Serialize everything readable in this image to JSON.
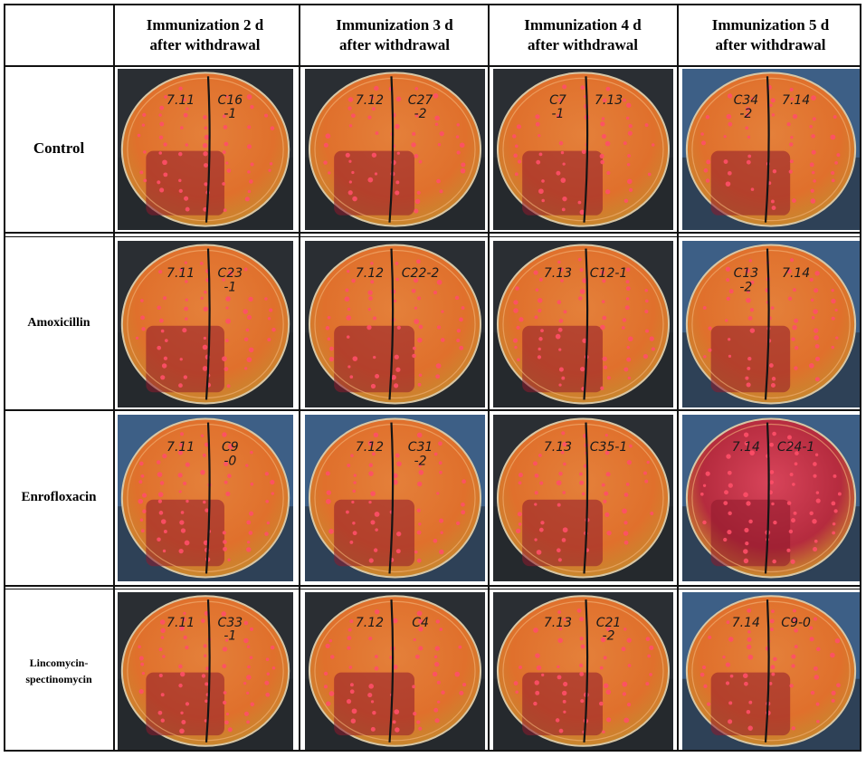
{
  "columns": [
    {
      "line1": "Immunization 2 d",
      "line2": "after withdrawal"
    },
    {
      "line1": "Immunization 3 d",
      "line2": "after withdrawal"
    },
    {
      "line1": "Immunization 4 d",
      "line2": "after withdrawal"
    },
    {
      "line1": "Immunization 5 d",
      "line2": "after withdrawal"
    }
  ],
  "rows": [
    {
      "label": "Control",
      "plates": [
        {
          "left": "7.11",
          "right": "C16",
          "right2": "-1"
        },
        {
          "left": "7.12",
          "right": "C27",
          "right2": "-2"
        },
        {
          "left": "C7",
          "left2": "-1",
          "right": "7.13"
        },
        {
          "left": "C34",
          "left2": "-2",
          "right": "7.14"
        }
      ]
    },
    {
      "label": "Amoxicillin",
      "plates": [
        {
          "left": "7.11",
          "right": "C23",
          "right2": "-1"
        },
        {
          "left": "7.12",
          "right": "C22-2"
        },
        {
          "left": "7.13",
          "right": "C12-1"
        },
        {
          "left": "C13",
          "left2": "-2",
          "right": "7.14"
        }
      ]
    },
    {
      "label": "Enrofloxacin",
      "plates": [
        {
          "left": "7.11",
          "right": "C9",
          "right2": "-0"
        },
        {
          "left": "7.12",
          "right": "C31",
          "right2": "-2"
        },
        {
          "left": "7.13",
          "right": "C35-1"
        },
        {
          "left": "7.14",
          "right": "C24-1"
        }
      ]
    },
    {
      "label": "Lincomycin-",
      "label2": "spectinomycin",
      "plates": [
        {
          "left": "7.11",
          "right": "C33",
          "right2": "-1"
        },
        {
          "left": "7.12",
          "right": "C4"
        },
        {
          "left": "7.13",
          "right": "C21",
          "right2": "-2"
        },
        {
          "left": "7.14",
          "right": "C9-0"
        }
      ]
    }
  ],
  "colors": {
    "agar_orange": "#e0702c",
    "agar_red": "#b52b3e",
    "colony": "#ff4f68",
    "background_dark": "#2a2e33",
    "background_blue": "#3d5f86",
    "marker_line": "#141414"
  }
}
